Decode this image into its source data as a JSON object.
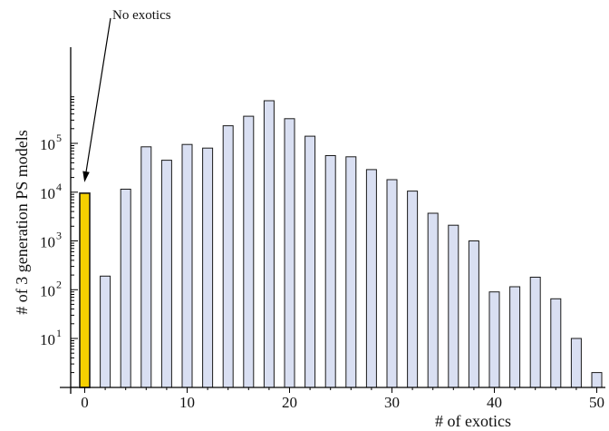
{
  "chart_data": {
    "type": "bar",
    "title": "",
    "xlabel": "# of exotics",
    "ylabel": "# of 3 generation  PS models",
    "yscale": "log",
    "ylim": [
      1,
      1000000
    ],
    "xlim": [
      -1,
      51
    ],
    "grid": false,
    "legend": "none",
    "x": [
      0,
      2,
      4,
      6,
      8,
      10,
      12,
      14,
      16,
      18,
      20,
      22,
      24,
      26,
      28,
      30,
      32,
      34,
      36,
      38,
      40,
      42,
      44,
      46,
      48,
      50
    ],
    "values": [
      9500,
      190,
      11500,
      85000,
      45000,
      95000,
      80000,
      230000,
      360000,
      750000,
      320000,
      140000,
      56000,
      53000,
      29000,
      18000,
      10500,
      3700,
      2100,
      1000,
      90,
      115,
      180,
      65,
      10,
      2
    ],
    "highlight_index": 0,
    "highlight_color": "#f5d000",
    "bar_color": "#d9dff2",
    "x_ticks": [
      0,
      10,
      20,
      30,
      40,
      50
    ],
    "x_tick_labels": [
      "0",
      "10",
      "20",
      "30",
      "40",
      "50"
    ],
    "y_ticks": [
      {
        "value": 10,
        "base": "10",
        "exp": "1"
      },
      {
        "value": 100,
        "base": "10",
        "exp": "2"
      },
      {
        "value": 1000,
        "base": "10",
        "exp": "3"
      },
      {
        "value": 10000,
        "base": "10",
        "exp": "4"
      },
      {
        "value": 100000,
        "base": "10",
        "exp": "5"
      }
    ],
    "annotation": {
      "text": "No exotics",
      "target_index": 0
    }
  }
}
